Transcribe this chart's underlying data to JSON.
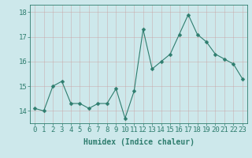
{
  "x": [
    0,
    1,
    2,
    3,
    4,
    5,
    6,
    7,
    8,
    9,
    10,
    11,
    12,
    13,
    14,
    15,
    16,
    17,
    18,
    19,
    20,
    21,
    22,
    23
  ],
  "y": [
    14.1,
    14.0,
    15.0,
    15.2,
    14.3,
    14.3,
    14.1,
    14.3,
    14.3,
    14.9,
    13.7,
    14.8,
    17.3,
    15.7,
    16.0,
    16.3,
    17.1,
    17.9,
    17.1,
    16.8,
    16.3,
    16.1,
    15.9,
    15.3
  ],
  "line_color": "#2e7d6e",
  "marker": "D",
  "marker_size": 2.5,
  "bg_color": "#cde8eb",
  "grid_color": "#b0d4d8",
  "xlabel": "Humidex (Indice chaleur)",
  "ylim": [
    13.5,
    18.3
  ],
  "xlim": [
    -0.5,
    23.5
  ],
  "yticks": [
    14,
    15,
    16,
    17,
    18
  ],
  "xtick_labels": [
    "0",
    "1",
    "2",
    "3",
    "4",
    "5",
    "6",
    "7",
    "8",
    "9",
    "10",
    "11",
    "12",
    "13",
    "14",
    "15",
    "16",
    "17",
    "18",
    "19",
    "20",
    "21",
    "22",
    "23"
  ],
  "xlabel_fontsize": 7,
  "tick_fontsize": 6.5,
  "tick_color": "#2e7d6e",
  "label_color": "#2e7d6e"
}
